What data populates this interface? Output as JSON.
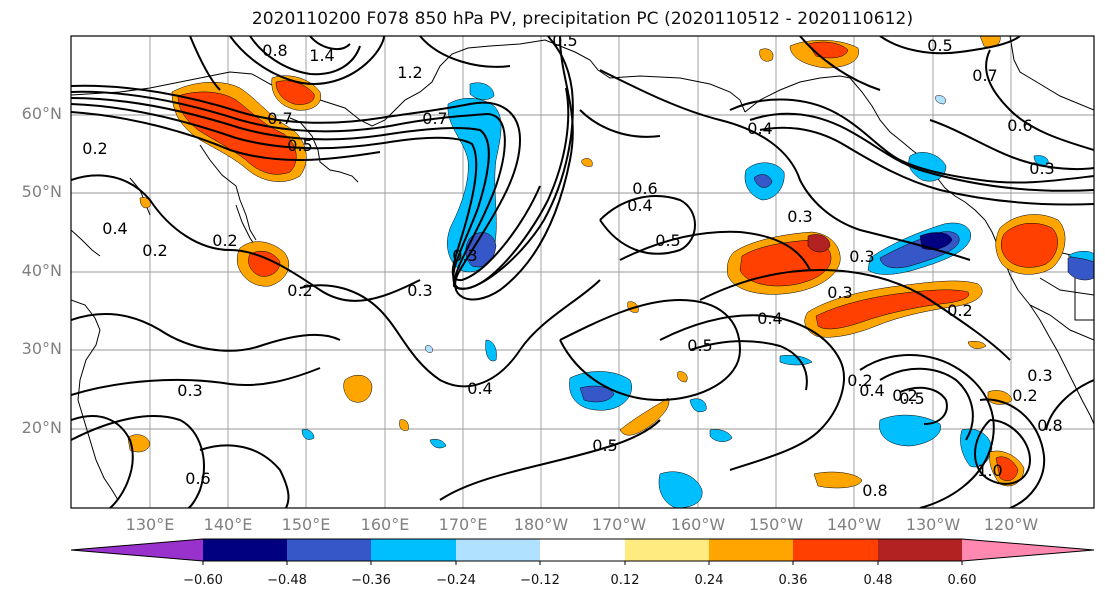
{
  "title": "2020110200 F078 850 hPa PV, precipitation PC (2020110512 - 2020110612)",
  "map": {
    "lat_labels": [
      "60°N",
      "50°N",
      "40°N",
      "30°N",
      "20°N"
    ],
    "lon_labels": [
      "130°E",
      "140°E",
      "150°E",
      "160°E",
      "170°E",
      "180°W",
      "170°W",
      "160°W",
      "150°W",
      "140°W",
      "130°W",
      "120°W"
    ],
    "grid": true
  },
  "contours": {
    "color": "#000000",
    "labels": [
      "0.2",
      "0.4",
      "0.2",
      "0.2",
      "0.8",
      "1.4",
      "1.2",
      "0.7",
      "0.5",
      "0.7",
      "0.3",
      "0.3",
      "0.2",
      "0.3",
      "0.6",
      "0.4",
      "0.5",
      "0.5",
      "0.4",
      "0.4",
      "0.3",
      "0.3",
      "0.5",
      "0.4",
      "0.5",
      "0.7",
      "0.6",
      "0.3",
      "0.2",
      "0.2",
      "0.4",
      "0.2",
      "0.5",
      "0.8",
      "1.0",
      "0.6",
      "0.5",
      "0.8",
      "0.2",
      "0.3",
      "0.3"
    ]
  },
  "colorbar": {
    "ticks": [
      "−0.60",
      "−0.48",
      "−0.36",
      "−0.24",
      "−0.12",
      "0.12",
      "0.24",
      "0.36",
      "0.48",
      "0.60"
    ],
    "colors": [
      "#9932cc",
      "#000080",
      "#3557c8",
      "#00bfff",
      "#b0e2ff",
      "#ffffff",
      "#ffeb80",
      "#ffa500",
      "#ff4000",
      "#b22222",
      "#ff88b0"
    ]
  }
}
